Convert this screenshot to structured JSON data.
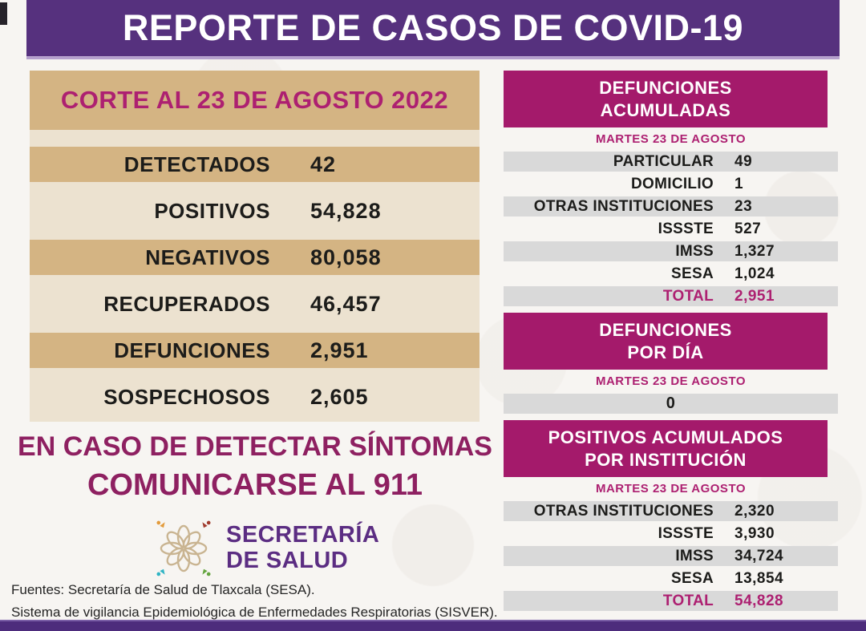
{
  "banner": {
    "title": "REPORTE DE CASOS DE COVID-19"
  },
  "left_panel": {
    "header": "CORTE AL 23 DE AGOSTO 2022",
    "rows": [
      {
        "label": "DETECTADOS",
        "value": "42"
      },
      {
        "label": "POSITIVOS",
        "value": "54,828"
      },
      {
        "label": "NEGATIVOS",
        "value": "80,058"
      },
      {
        "label": "RECUPERADOS",
        "value": "46,457"
      },
      {
        "label": "DEFUNCIONES",
        "value": "2,951"
      },
      {
        "label": "SOSPECHOSOS",
        "value": "2,605"
      }
    ]
  },
  "cta": {
    "line1": "EN CASO DE DETECTAR SÍNTOMAS",
    "line2": "COMUNICARSE AL 911"
  },
  "logo": {
    "line1": "SECRETARÍA",
    "line2": "DE SALUD"
  },
  "sources": {
    "line1": "Fuentes:  Secretaría de Salud de Tlaxcala (SESA).",
    "line2": "Sistema de vigilancia Epidemiológica de Enfermedades Respiratorias (SISVER)."
  },
  "right": {
    "sections": [
      {
        "id": "defunciones-acumuladas",
        "title_lines": [
          "DEFUNCIONES",
          "ACUMULADAS"
        ],
        "date": "MARTES 23 DE AGOSTO",
        "rows": [
          {
            "label": "PARTICULAR",
            "value": "49"
          },
          {
            "label": "DOMICILIO",
            "value": "1"
          },
          {
            "label": "OTRAS INSTITUCIONES",
            "value": "23"
          },
          {
            "label": "ISSSTE",
            "value": "527"
          },
          {
            "label": "IMSS",
            "value": "1,327"
          },
          {
            "label": "SESA",
            "value": "1,024"
          },
          {
            "label": "TOTAL",
            "value": "2,951",
            "emphasis": true
          }
        ]
      },
      {
        "id": "defunciones-por-dia",
        "title_lines": [
          "DEFUNCIONES",
          "POR DÍA"
        ],
        "date": "MARTES 23 DE AGOSTO",
        "rows": [
          {
            "label": "",
            "value": "0"
          }
        ]
      },
      {
        "id": "positivos-acumulados",
        "title_lines": [
          "POSITIVOS ACUMULADOS",
          "POR INSTITUCIÓN"
        ],
        "date": "MARTES 23 DE AGOSTO",
        "rows": [
          {
            "label": "OTRAS INSTITUCIONES",
            "value": "2,320"
          },
          {
            "label": "ISSSTE",
            "value": "3,930"
          },
          {
            "label": "IMSS",
            "value": "34,724"
          },
          {
            "label": "SESA",
            "value": "13,854"
          },
          {
            "label": "TOTAL",
            "value": "54,828",
            "emphasis": true
          }
        ]
      }
    ]
  },
  "colors": {
    "banner_purple": "#56317e",
    "magenta_box": "#a41a6b",
    "magenta_text": "#ad2071",
    "cta_magenta": "#8e2061",
    "tan": "#d4b483",
    "light_beige": "#ece2d0",
    "row_gray": "#d9d9d9",
    "bottom_strip": "#4d2c7c",
    "logo_purple": "#5b2d82"
  }
}
